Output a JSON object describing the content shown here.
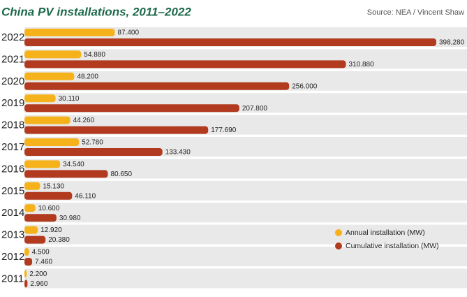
{
  "chart_data": {
    "type": "hbar",
    "title": "China PV installations, 2011–2022",
    "source": "Source: NEA / Vincent Shaw",
    "categories": [
      "2022",
      "2021",
      "2020",
      "2019",
      "2018",
      "2017",
      "2016",
      "2015",
      "2014",
      "2013",
      "2012",
      "2011"
    ],
    "series": [
      {
        "name": "Annual installation (MW)",
        "color": "#f5b21b",
        "values": [
          87400,
          54880,
          48200,
          30110,
          44260,
          52780,
          34540,
          15130,
          10600,
          12920,
          4500,
          2200
        ],
        "value_labels": [
          "87.400",
          "54.880",
          "48.200",
          "30.110",
          "44.260",
          "52.780",
          "34.540",
          "15.130",
          "10.600",
          "12.920",
          "4.500",
          "2.200"
        ]
      },
      {
        "name": "Cumulative installation (MW)",
        "color": "#b23a1f",
        "values": [
          398280,
          310880,
          256000,
          207800,
          177690,
          133430,
          80650,
          46110,
          30980,
          20380,
          7460,
          2960
        ],
        "value_labels": [
          "398,280",
          "310.880",
          "256.000",
          "207.800",
          "177.690",
          "133.430",
          "80.650",
          "46.110",
          "30.980",
          "20.380",
          "7.460",
          "2.960"
        ]
      }
    ]
  }
}
